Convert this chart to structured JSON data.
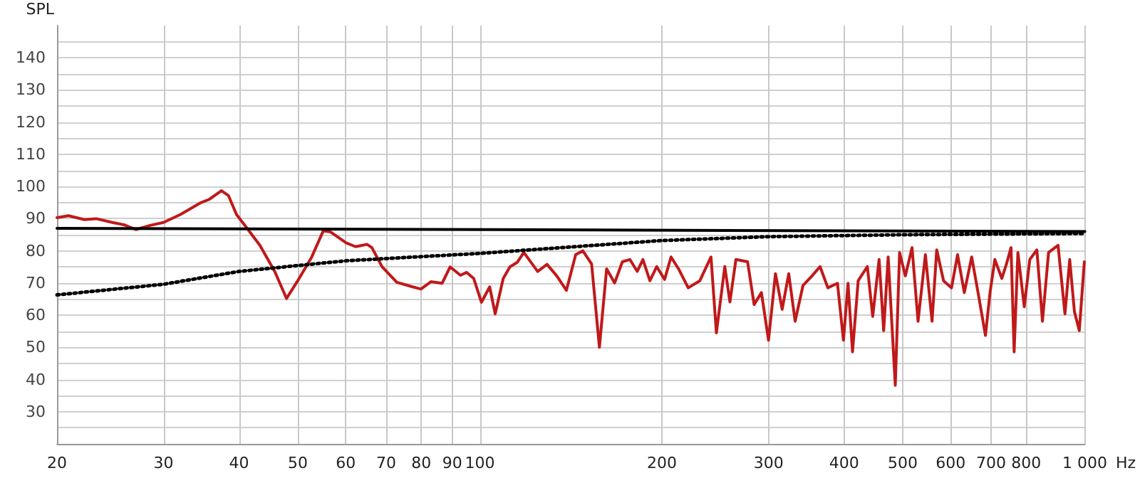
{
  "chart_data": {
    "type": "line",
    "xlabel": "Hz",
    "ylabel": "SPL",
    "log": "x",
    "grid": true,
    "marker": "none",
    "xlim": [
      20,
      1000
    ],
    "ylim": [
      20,
      150
    ],
    "xticks": [
      20,
      30,
      40,
      50,
      60,
      70,
      80,
      90,
      100,
      200,
      300,
      400,
      500,
      600,
      700,
      800,
      {
        "value": 1000,
        "label": "1 000"
      }
    ],
    "yticks": [
      {
        "value": 25,
        "label": null
      },
      30,
      {
        "value": 35,
        "label": null
      },
      40,
      {
        "value": 45,
        "label": null
      },
      50,
      {
        "value": 55,
        "label": null
      },
      60,
      {
        "value": 65,
        "label": null
      },
      70,
      {
        "value": 75,
        "label": null
      },
      80,
      {
        "value": 85,
        "label": null
      },
      90,
      {
        "value": 95,
        "label": null
      },
      100,
      {
        "value": 105,
        "label": null
      },
      110,
      {
        "value": 115,
        "label": null
      },
      120,
      {
        "value": 125,
        "label": null
      },
      130,
      {
        "value": 135,
        "label": null
      },
      140,
      {
        "value": 145,
        "label": null
      }
    ],
    "series": [
      {
        "color": "#c0191a",
        "line_style": "solid",
        "x": [
          20,
          20.9,
          22.2,
          23.2,
          24.7,
          25.8,
          27,
          28.5,
          30,
          32,
          34.6,
          35.7,
          37.4,
          38.4,
          39.6,
          41,
          43.3,
          45.8,
          47.9,
          50,
          52.7,
          55.1,
          56.6,
          60.1,
          62.3,
          65.1,
          66.3,
          68.9,
          72.9,
          77.4,
          79.9,
          83,
          86.6,
          89.3,
          92.9,
          95.1,
          97.7,
          100.6,
          103.8,
          106,
          109.3,
          112.1,
          115.4,
          118.2,
          124.6,
          129.1,
          134,
          139,
          144,
          148,
          153,
          157.6,
          162,
          167,
          172,
          177,
          182,
          186,
          191,
          196,
          202,
          207,
          213,
          221,
          231,
          241,
          246,
          254,
          259,
          265,
          277,
          284,
          292,
          300,
          308,
          316,
          324,
          332,
          342,
          354,
          365,
          376,
          390,
          399,
          406,
          413,
          422,
          437,
          446,
          457,
          465,
          473,
          486,
          494,
          505,
          518,
          530,
          545,
          559,
          569,
          584,
          602,
          616,
          632,
          650,
          667,
          685,
          697,
          710,
          729,
          742,
          755,
          764,
          775,
          794,
          811,
          833,
          851,
          871,
          903,
          927,
          944,
          961,
          979,
          998
        ],
        "values": [
          90.3,
          90.9,
          89.7,
          90,
          88.8,
          88.1,
          86.6,
          87.9,
          88.8,
          91.3,
          95,
          96,
          98.7,
          97.2,
          91.3,
          87.6,
          81.7,
          73.6,
          65.2,
          70.7,
          78,
          86.2,
          85.9,
          82.5,
          81.3,
          82,
          81,
          75.1,
          70.2,
          68.8,
          68.1,
          70.4,
          69.9,
          75,
          72.4,
          73.3,
          71.4,
          64,
          68.8,
          60.4,
          71.4,
          75,
          76.5,
          79.5,
          73.6,
          75.8,
          72.2,
          67.7,
          78.8,
          80,
          75.9,
          50,
          74.4,
          70,
          76.6,
          77.3,
          73.6,
          77.3,
          70.7,
          75.1,
          71.1,
          78.1,
          74.4,
          68.5,
          70.7,
          78.1,
          54.5,
          75.1,
          64.1,
          77.3,
          76.6,
          63.3,
          67,
          52.2,
          72.9,
          61.8,
          72.9,
          58.1,
          69.2,
          72.2,
          75.1,
          68.5,
          69.9,
          52.2,
          69.9,
          48.6,
          70.7,
          75.1,
          59.6,
          77.3,
          55.2,
          78.1,
          38.2,
          79.5,
          72.2,
          81,
          58.1,
          78.8,
          58.1,
          80.3,
          70.7,
          68.5,
          78.8,
          67,
          78.1,
          66.3,
          53.7,
          67,
          77.3,
          71.4,
          75.9,
          81,
          48.6,
          79.5,
          62.6,
          77.3,
          80.3,
          58.1,
          79.5,
          81.7,
          60.4,
          77.3,
          61.1,
          55.2,
          76.6
        ]
      },
      {
        "color": "#000000",
        "line_style": "solid",
        "x": [
          20,
          1000
        ],
        "values": [
          87,
          86
        ]
      },
      {
        "color": "#000000",
        "line_style": "dotted",
        "x": [
          20,
          30,
          40,
          60,
          100,
          200,
          300,
          500,
          1000
        ],
        "values": [
          66.3,
          69.6,
          73.6,
          76.9,
          79.2,
          83.2,
          84.4,
          85,
          85.4
        ]
      }
    ]
  }
}
